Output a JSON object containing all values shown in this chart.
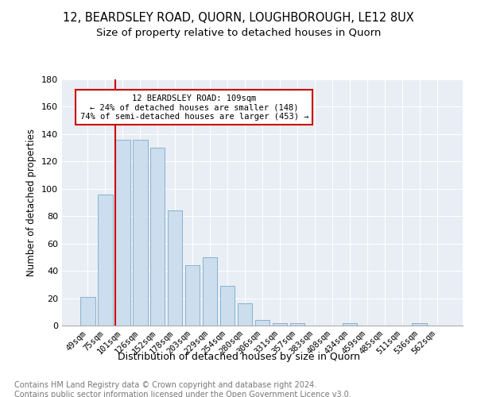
{
  "title": "12, BEARDSLEY ROAD, QUORN, LOUGHBOROUGH, LE12 8UX",
  "subtitle": "Size of property relative to detached houses in Quorn",
  "xlabel": "Distribution of detached houses by size in Quorn",
  "ylabel": "Number of detached properties",
  "bar_labels": [
    "49sqm",
    "75sqm",
    "101sqm",
    "126sqm",
    "152sqm",
    "178sqm",
    "203sqm",
    "229sqm",
    "254sqm",
    "280sqm",
    "306sqm",
    "331sqm",
    "357sqm",
    "383sqm",
    "408sqm",
    "434sqm",
    "459sqm",
    "485sqm",
    "511sqm",
    "536sqm",
    "562sqm"
  ],
  "bar_values": [
    21,
    96,
    136,
    136,
    130,
    84,
    44,
    50,
    29,
    16,
    4,
    2,
    2,
    0,
    0,
    2,
    0,
    0,
    0,
    2,
    0
  ],
  "bar_color": "#ccdded",
  "bar_edge_color": "#7aaacc",
  "vline_index": 2,
  "vline_color": "#cc0000",
  "annotation_text": "12 BEARDSLEY ROAD: 109sqm\n← 24% of detached houses are smaller (148)\n74% of semi-detached houses are larger (453) →",
  "annotation_box_color": "#ffffff",
  "annotation_box_edge": "#cc0000",
  "ylim": [
    0,
    180
  ],
  "yticks": [
    0,
    20,
    40,
    60,
    80,
    100,
    120,
    140,
    160,
    180
  ],
  "bg_color": "#e8eef4",
  "footer_text": "Contains HM Land Registry data © Crown copyright and database right 2024.\nContains public sector information licensed under the Open Government Licence v3.0.",
  "title_fontsize": 10.5,
  "subtitle_fontsize": 9.5,
  "xlabel_fontsize": 9,
  "ylabel_fontsize": 8.5,
  "footer_fontsize": 7,
  "tick_fontsize": 7.5,
  "annotation_fontsize": 7.5
}
